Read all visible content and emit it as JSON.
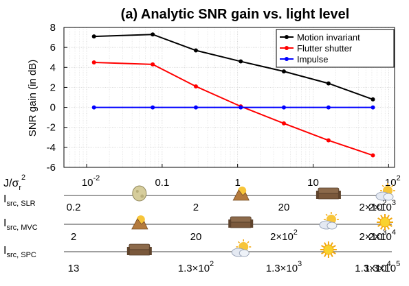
{
  "chart_data": {
    "type": "line",
    "title": "(a) Analytic SNR gain vs. light level",
    "ylabel": "SNR gain (in dB)",
    "ylim": [
      -6,
      8
    ],
    "yticks": [
      -6,
      -4,
      -2,
      0,
      2,
      4,
      6,
      8
    ],
    "ytick_labels": [
      "-6",
      "-4",
      "-2",
      "0",
      "2",
      "4",
      "6",
      "8"
    ],
    "xscale": "log",
    "xlim": [
      0.005,
      120
    ],
    "x": [
      0.0125,
      0.075,
      0.28,
      1.1,
      4.1,
      16,
      62
    ],
    "grid": true,
    "legend_position": "top-right",
    "series": [
      {
        "name": "Motion invariant",
        "color": "#000000",
        "values": [
          7.1,
          7.3,
          5.7,
          4.6,
          3.6,
          2.4,
          0.8
        ]
      },
      {
        "name": "Flutter shutter",
        "color": "#ff0000",
        "values": [
          4.5,
          4.3,
          2.1,
          0.1,
          -1.6,
          -3.3,
          -4.8
        ]
      },
      {
        "name": "Impulse",
        "color": "#0000ff",
        "values": [
          0.0,
          0.0,
          0.0,
          0.0,
          0.0,
          0.0,
          0.0
        ]
      }
    ]
  },
  "axis_rows": [
    {
      "main": "I",
      "sub": "src, SLR",
      "labels": [
        {
          "text": "0.2",
          "x": 0.0125
        },
        {
          "text": "2",
          "x": 0.28
        },
        {
          "text": "20",
          "x": 4.1
        },
        {
          "text": "2×10",
          "sup": "2",
          "x": 62
        },
        {
          "text": "2×10",
          "sup": "3",
          "x": 500
        }
      ]
    },
    {
      "main": "I",
      "sub": "src, MVC",
      "labels": [
        {
          "text": "2",
          "x": 0.0125
        },
        {
          "text": "20",
          "x": 0.28
        },
        {
          "text": "2×10",
          "sup": "2",
          "x": 4.1
        },
        {
          "text": "2×10",
          "sup": "3",
          "x": 62
        },
        {
          "text": "2×10",
          "sup": "4",
          "x": 500
        }
      ]
    },
    {
      "main": "I",
      "sub": "src, SPC",
      "labels": [
        {
          "text": "13",
          "x": 0.0125
        },
        {
          "text": "1.3×10",
          "sup": "2",
          "x": 0.28
        },
        {
          "text": "1.3×10",
          "sup": "3",
          "x": 4.1
        },
        {
          "text": "1.3×10",
          "sup": "4",
          "x": 62
        },
        {
          "text": "1.3×10",
          "sup": "5",
          "x": 500
        }
      ]
    }
  ],
  "x_axis": {
    "label_main": "J/σ",
    "label_sub": "r",
    "label_sup": "2",
    "ticks": [
      {
        "text": "10",
        "sup": "-2",
        "x": 0.01
      },
      {
        "text": "0.1",
        "x": 0.1
      },
      {
        "text": "1",
        "x": 1
      },
      {
        "text": "10",
        "x": 10
      },
      {
        "text": "10",
        "sup": "2",
        "x": 100
      }
    ]
  },
  "icons": [
    {
      "row": 0,
      "x": 0.05,
      "name": "moon-icon"
    },
    {
      "row": 0,
      "x": 1.1,
      "name": "dawn-icon"
    },
    {
      "row": 0,
      "x": 16,
      "name": "living-room-icon"
    },
    {
      "row": 0,
      "x": 250,
      "name": "cloudy-sun-icon"
    },
    {
      "row": 1,
      "x": 0.05,
      "name": "dawn-icon"
    },
    {
      "row": 1,
      "x": 1.1,
      "name": "living-room-icon"
    },
    {
      "row": 1,
      "x": 16,
      "name": "cloudy-sun-icon"
    },
    {
      "row": 1,
      "x": 250,
      "name": "sun-icon"
    },
    {
      "row": 2,
      "x": 0.05,
      "name": "living-room-icon"
    },
    {
      "row": 2,
      "x": 1.1,
      "name": "cloudy-sun-icon"
    },
    {
      "row": 2,
      "x": 16,
      "name": "sun-icon"
    }
  ]
}
